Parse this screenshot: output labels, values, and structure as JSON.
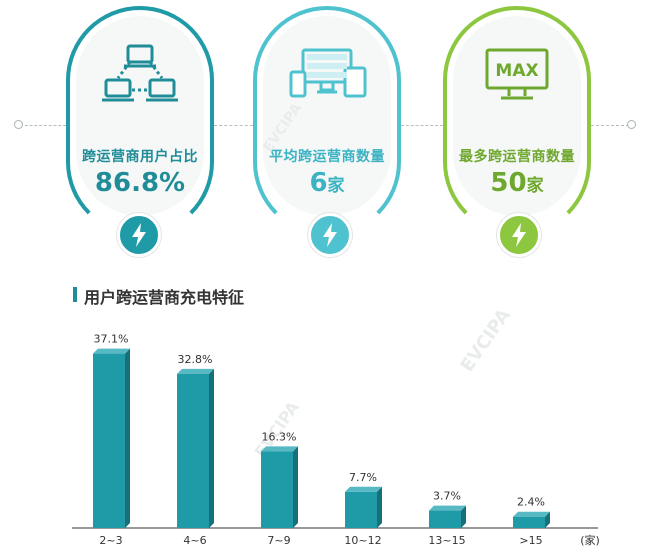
{
  "cards": [
    {
      "label": "跨运营商用户占比",
      "value": "86.8%",
      "unit": "",
      "color": "#1f9aa7",
      "icon": "network-computers-icon"
    },
    {
      "label": "平均跨运营商数量",
      "value": "6",
      "unit": "家",
      "color": "#4fc2cf",
      "icon": "multi-device-icon"
    },
    {
      "label": "最多跨运营商数量",
      "value": "50",
      "unit": "家",
      "color": "#8dc63f",
      "icon": "max-monitor-icon"
    }
  ],
  "max_icon_text": "MAX",
  "section_title": "用户跨运营商充电特征",
  "watermark": "EVCIPA",
  "chart_data": {
    "type": "bar",
    "categories": [
      "2~3",
      "4~6",
      "7~9",
      "10~12",
      "13~15",
      ">15"
    ],
    "values": [
      37.1,
      32.8,
      16.3,
      7.7,
      3.7,
      2.4
    ],
    "value_labels": [
      "37.1%",
      "32.8%",
      "16.3%",
      "7.7%",
      "3.7%",
      "2.4%"
    ],
    "x_unit": "(家)",
    "ylim": [
      0,
      40
    ],
    "color": "#1f9aa7",
    "grid": false
  }
}
